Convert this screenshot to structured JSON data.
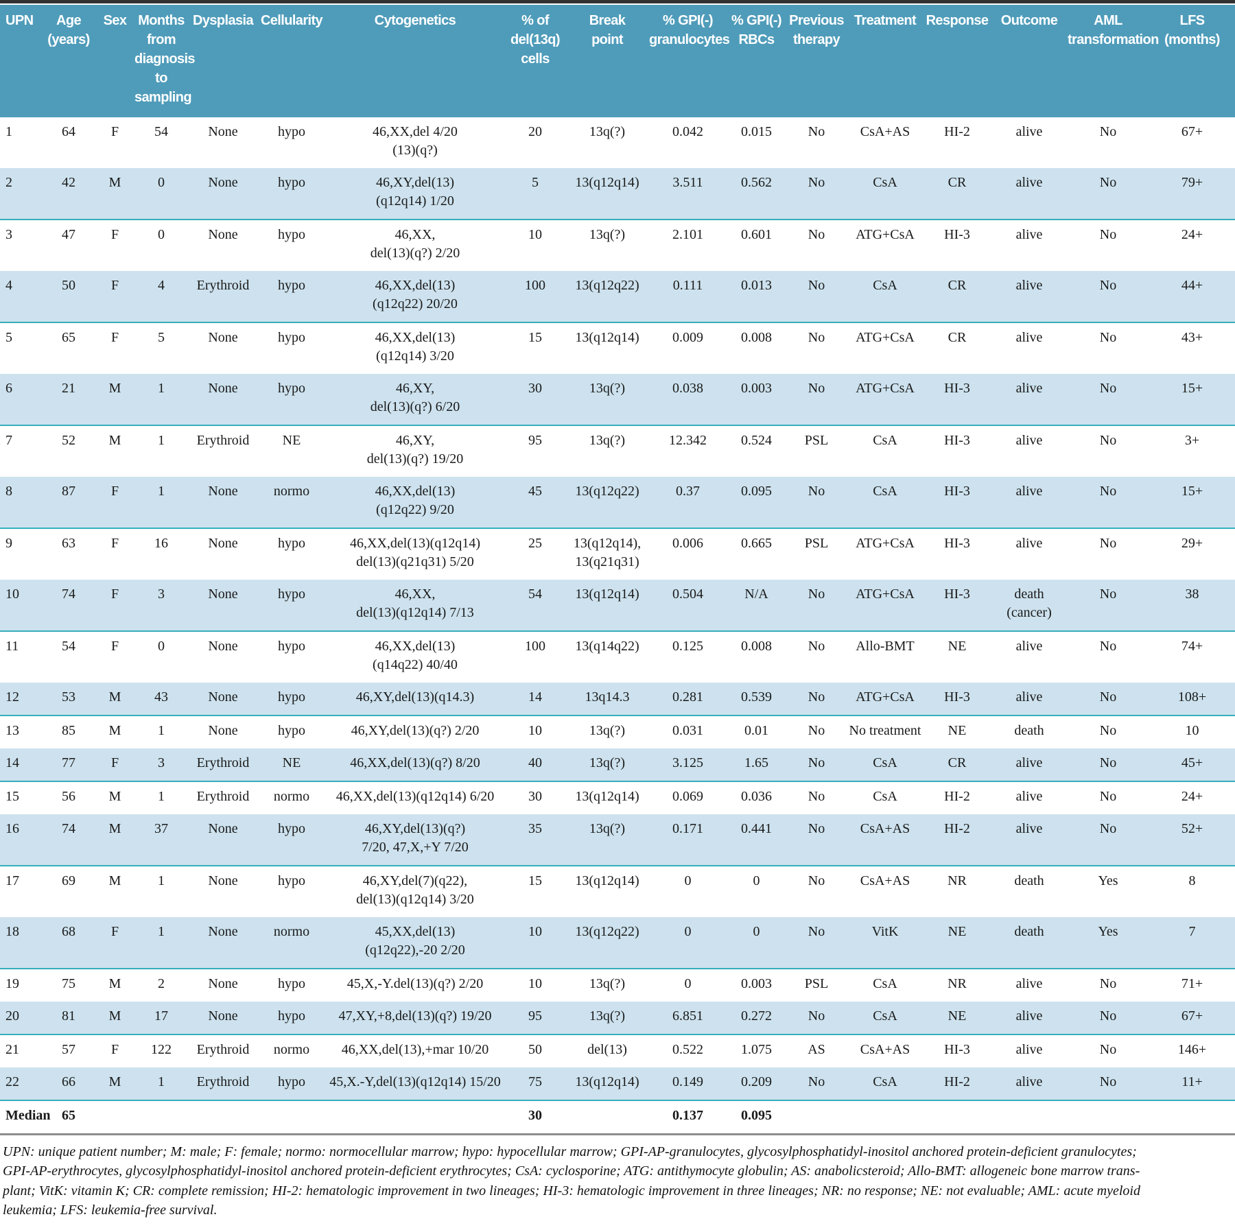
{
  "colors": {
    "header_bg": "#4f9cba",
    "row_stripe": "#cde2ee",
    "row_divider": "#35aebc",
    "bottom_rule": "#8c8c8c",
    "top_bar": "#323232"
  },
  "table": {
    "columns": [
      {
        "id": "upn",
        "label": "UPN"
      },
      {
        "id": "age",
        "label": "Age\n(years)"
      },
      {
        "id": "sex",
        "label": "Sex"
      },
      {
        "id": "months",
        "label": "Months\nfrom\ndiagnosis\nto sampling"
      },
      {
        "id": "dysplasia",
        "label": "Dysplasia"
      },
      {
        "id": "cellularity",
        "label": "Cellularity"
      },
      {
        "id": "cytogenetics",
        "label": "Cytogenetics"
      },
      {
        "id": "pct_del13q",
        "label": "% of\ndel(13q)\ncells"
      },
      {
        "id": "breakpoint",
        "label": "Break\npoint"
      },
      {
        "id": "gpi_gran",
        "label": "% GPI(-)\ngranulocytes"
      },
      {
        "id": "gpi_rbc",
        "label": "% GPI(-)\nRBCs"
      },
      {
        "id": "prev_therapy",
        "label": "Previous\ntherapy"
      },
      {
        "id": "treatment",
        "label": "Treatment"
      },
      {
        "id": "response",
        "label": "Response"
      },
      {
        "id": "outcome",
        "label": "Outcome"
      },
      {
        "id": "aml",
        "label": "AML\ntransformation"
      },
      {
        "id": "lfs",
        "label": "LFS\n(months)"
      }
    ],
    "rows": [
      [
        "1",
        "64",
        "F",
        "54",
        "None",
        "hypo",
        "46,XX,del 4/20\n(13)(q?)",
        "20",
        "13q(?)",
        "0.042",
        "0.015",
        "No",
        "CsA+AS",
        "HI-2",
        "alive",
        "No",
        "67+"
      ],
      [
        "2",
        "42",
        "M",
        "0",
        "None",
        "hypo",
        "46,XY,del(13)\n(q12q14) 1/20",
        "5",
        "13(q12q14)",
        "3.511",
        "0.562",
        "No",
        "CsA",
        "CR",
        "alive",
        "No",
        "79+"
      ],
      [
        "3",
        "47",
        "F",
        "0",
        "None",
        "hypo",
        "46,XX,\ndel(13)(q?) 2/20",
        "10",
        "13q(?)",
        "2.101",
        "0.601",
        "No",
        "ATG+CsA",
        "HI-3",
        "alive",
        "No",
        "24+"
      ],
      [
        "4",
        "50",
        "F",
        "4",
        "Erythroid",
        "hypo",
        "46,XX,del(13)\n(q12q22) 20/20",
        "100",
        "13(q12q22)",
        "0.111",
        "0.013",
        "No",
        "CsA",
        "CR",
        "alive",
        "No",
        "44+"
      ],
      [
        "5",
        "65",
        "F",
        "5",
        "None",
        "hypo",
        "46,XX,del(13)\n(q12q14) 3/20",
        "15",
        "13(q12q14)",
        "0.009",
        "0.008",
        "No",
        "ATG+CsA",
        "CR",
        "alive",
        "No",
        "43+"
      ],
      [
        "6",
        "21",
        "M",
        "1",
        "None",
        "hypo",
        "46,XY,\ndel(13)(q?) 6/20",
        "30",
        "13q(?)",
        "0.038",
        "0.003",
        "No",
        "ATG+CsA",
        "HI-3",
        "alive",
        "No",
        "15+"
      ],
      [
        "7",
        "52",
        "M",
        "1",
        "Erythroid",
        "NE",
        "46,XY,\ndel(13)(q?) 19/20",
        "95",
        "13q(?)",
        "12.342",
        "0.524",
        "PSL",
        "CsA",
        "HI-3",
        "alive",
        "No",
        "3+"
      ],
      [
        "8",
        "87",
        "F",
        "1",
        "None",
        "normo",
        "46,XX,del(13)\n(q12q22) 9/20",
        "45",
        "13(q12q22)",
        "0.37",
        "0.095",
        "No",
        "CsA",
        "HI-3",
        "alive",
        "No",
        "15+"
      ],
      [
        "9",
        "63",
        "F",
        "16",
        "None",
        "hypo",
        "46,XX,del(13)(q12q14)\ndel(13)(q21q31) 5/20",
        "25",
        "13(q12q14),\n13(q21q31)",
        "0.006",
        "0.665",
        "PSL",
        "ATG+CsA",
        "HI-3",
        "alive",
        "No",
        "29+"
      ],
      [
        "10",
        "74",
        "F",
        "3",
        "None",
        "hypo",
        "46,XX,\ndel(13)(q12q14) 7/13",
        "54",
        "13(q12q14)",
        "0.504",
        "N/A",
        "No",
        "ATG+CsA",
        "HI-3",
        "death\n(cancer)",
        "No",
        "38"
      ],
      [
        "11",
        "54",
        "F",
        "0",
        "None",
        "hypo",
        "46,XX,del(13)\n(q14q22) 40/40",
        "100",
        "13(q14q22)",
        "0.125",
        "0.008",
        "No",
        "Allo-BMT",
        "NE",
        "alive",
        "No",
        "74+"
      ],
      [
        "12",
        "53",
        "M",
        "43",
        "None",
        "hypo",
        "46,XY,del(13)(q14.3)",
        "14",
        "13q14.3",
        "0.281",
        "0.539",
        "No",
        "ATG+CsA",
        "HI-3",
        "alive",
        "No",
        "108+"
      ],
      [
        "13",
        "85",
        "M",
        "1",
        "None",
        "hypo",
        "46,XY,del(13)(q?) 2/20",
        "10",
        "13q(?)",
        "0.031",
        "0.01",
        "No",
        "No treatment",
        "NE",
        "death",
        "No",
        "10"
      ],
      [
        "14",
        "77",
        "F",
        "3",
        "Erythroid",
        "NE",
        "46,XX,del(13)(q?) 8/20",
        "40",
        "13q(?)",
        "3.125",
        "1.65",
        "No",
        "CsA",
        "CR",
        "alive",
        "No",
        "45+"
      ],
      [
        "15",
        "56",
        "M",
        "1",
        "Erythroid",
        "normo",
        "46,XX,del(13)(q12q14) 6/20",
        "30",
        "13(q12q14)",
        "0.069",
        "0.036",
        "No",
        "CsA",
        "HI-2",
        "alive",
        "No",
        "24+"
      ],
      [
        "16",
        "74",
        "M",
        "37",
        "None",
        "hypo",
        "46,XY,del(13)(q?)\n7/20, 47,X,+Y 7/20",
        "35",
        "13q(?)",
        "0.171",
        "0.441",
        "No",
        "CsA+AS",
        "HI-2",
        "alive",
        "No",
        "52+"
      ],
      [
        "17",
        "69",
        "M",
        "1",
        "None",
        "hypo",
        "46,XY,del(7)(q22),\ndel(13)(q12q14) 3/20",
        "15",
        "13(q12q14)",
        "0",
        "0",
        "No",
        "CsA+AS",
        "NR",
        "death",
        "Yes",
        "8"
      ],
      [
        "18",
        "68",
        "F",
        "1",
        "None",
        "normo",
        "45,XX,del(13)\n(q12q22),-20 2/20",
        "10",
        "13(q12q22)",
        "0",
        "0",
        "No",
        "VitK",
        "NE",
        "death",
        "Yes",
        "7"
      ],
      [
        "19",
        "75",
        "M",
        "2",
        "None",
        "hypo",
        "45,X,-Y.del(13)(q?) 2/20",
        "10",
        "13q(?)",
        "0",
        "0.003",
        "PSL",
        "CsA",
        "NR",
        "alive",
        "No",
        "71+"
      ],
      [
        "20",
        "81",
        "M",
        "17",
        "None",
        "hypo",
        "47,XY,+8,del(13)(q?) 19/20",
        "95",
        "13q(?)",
        "6.851",
        "0.272",
        "No",
        "CsA",
        "NE",
        "alive",
        "No",
        "67+"
      ],
      [
        "21",
        "57",
        "F",
        "122",
        "Erythroid",
        "normo",
        "46,XX,del(13),+mar 10/20",
        "50",
        "del(13)",
        "0.522",
        "1.075",
        "AS",
        "CsA+AS",
        "HI-3",
        "alive",
        "No",
        "146+"
      ],
      [
        "22",
        "66",
        "M",
        "1",
        "Erythroid",
        "hypo",
        "45,X.-Y,del(13)(q12q14) 15/20",
        "75",
        "13(q12q14)",
        "0.149",
        "0.209",
        "No",
        "CsA",
        "HI-2",
        "alive",
        "No",
        "11+"
      ]
    ],
    "median_row": [
      "Median",
      "65",
      "",
      "",
      "",
      "",
      "",
      "30",
      "",
      "0.137",
      "0.095",
      "",
      "",
      "",
      "",
      "",
      ""
    ]
  },
  "footnote": "UPN: unique patient number; M: male; F: female; normo: normocellular marrow; hypo: hypocellular marrow; GPI-AP-granulocytes, glycosylphosphatidyl-inositol anchored protein-deficient granulocytes;\nGPI-AP-erythrocytes, glycosylphosphatidyl-inositol anchored protein-deficient erythrocytes; CsA: cyclosporine; ATG: antithymocyte globulin; AS: anabolicsteroid; Allo-BMT: allogeneic bone marrow trans-\nplant; VitK: vitamin K; CR: complete remission; HI-2: hematologic improvement in two lineages; HI-3: hematologic improvement in three lineages; NR: no response; NE: not evaluable; AML: acute myeloid\nleukemia; LFS: leukemia-free survival."
}
